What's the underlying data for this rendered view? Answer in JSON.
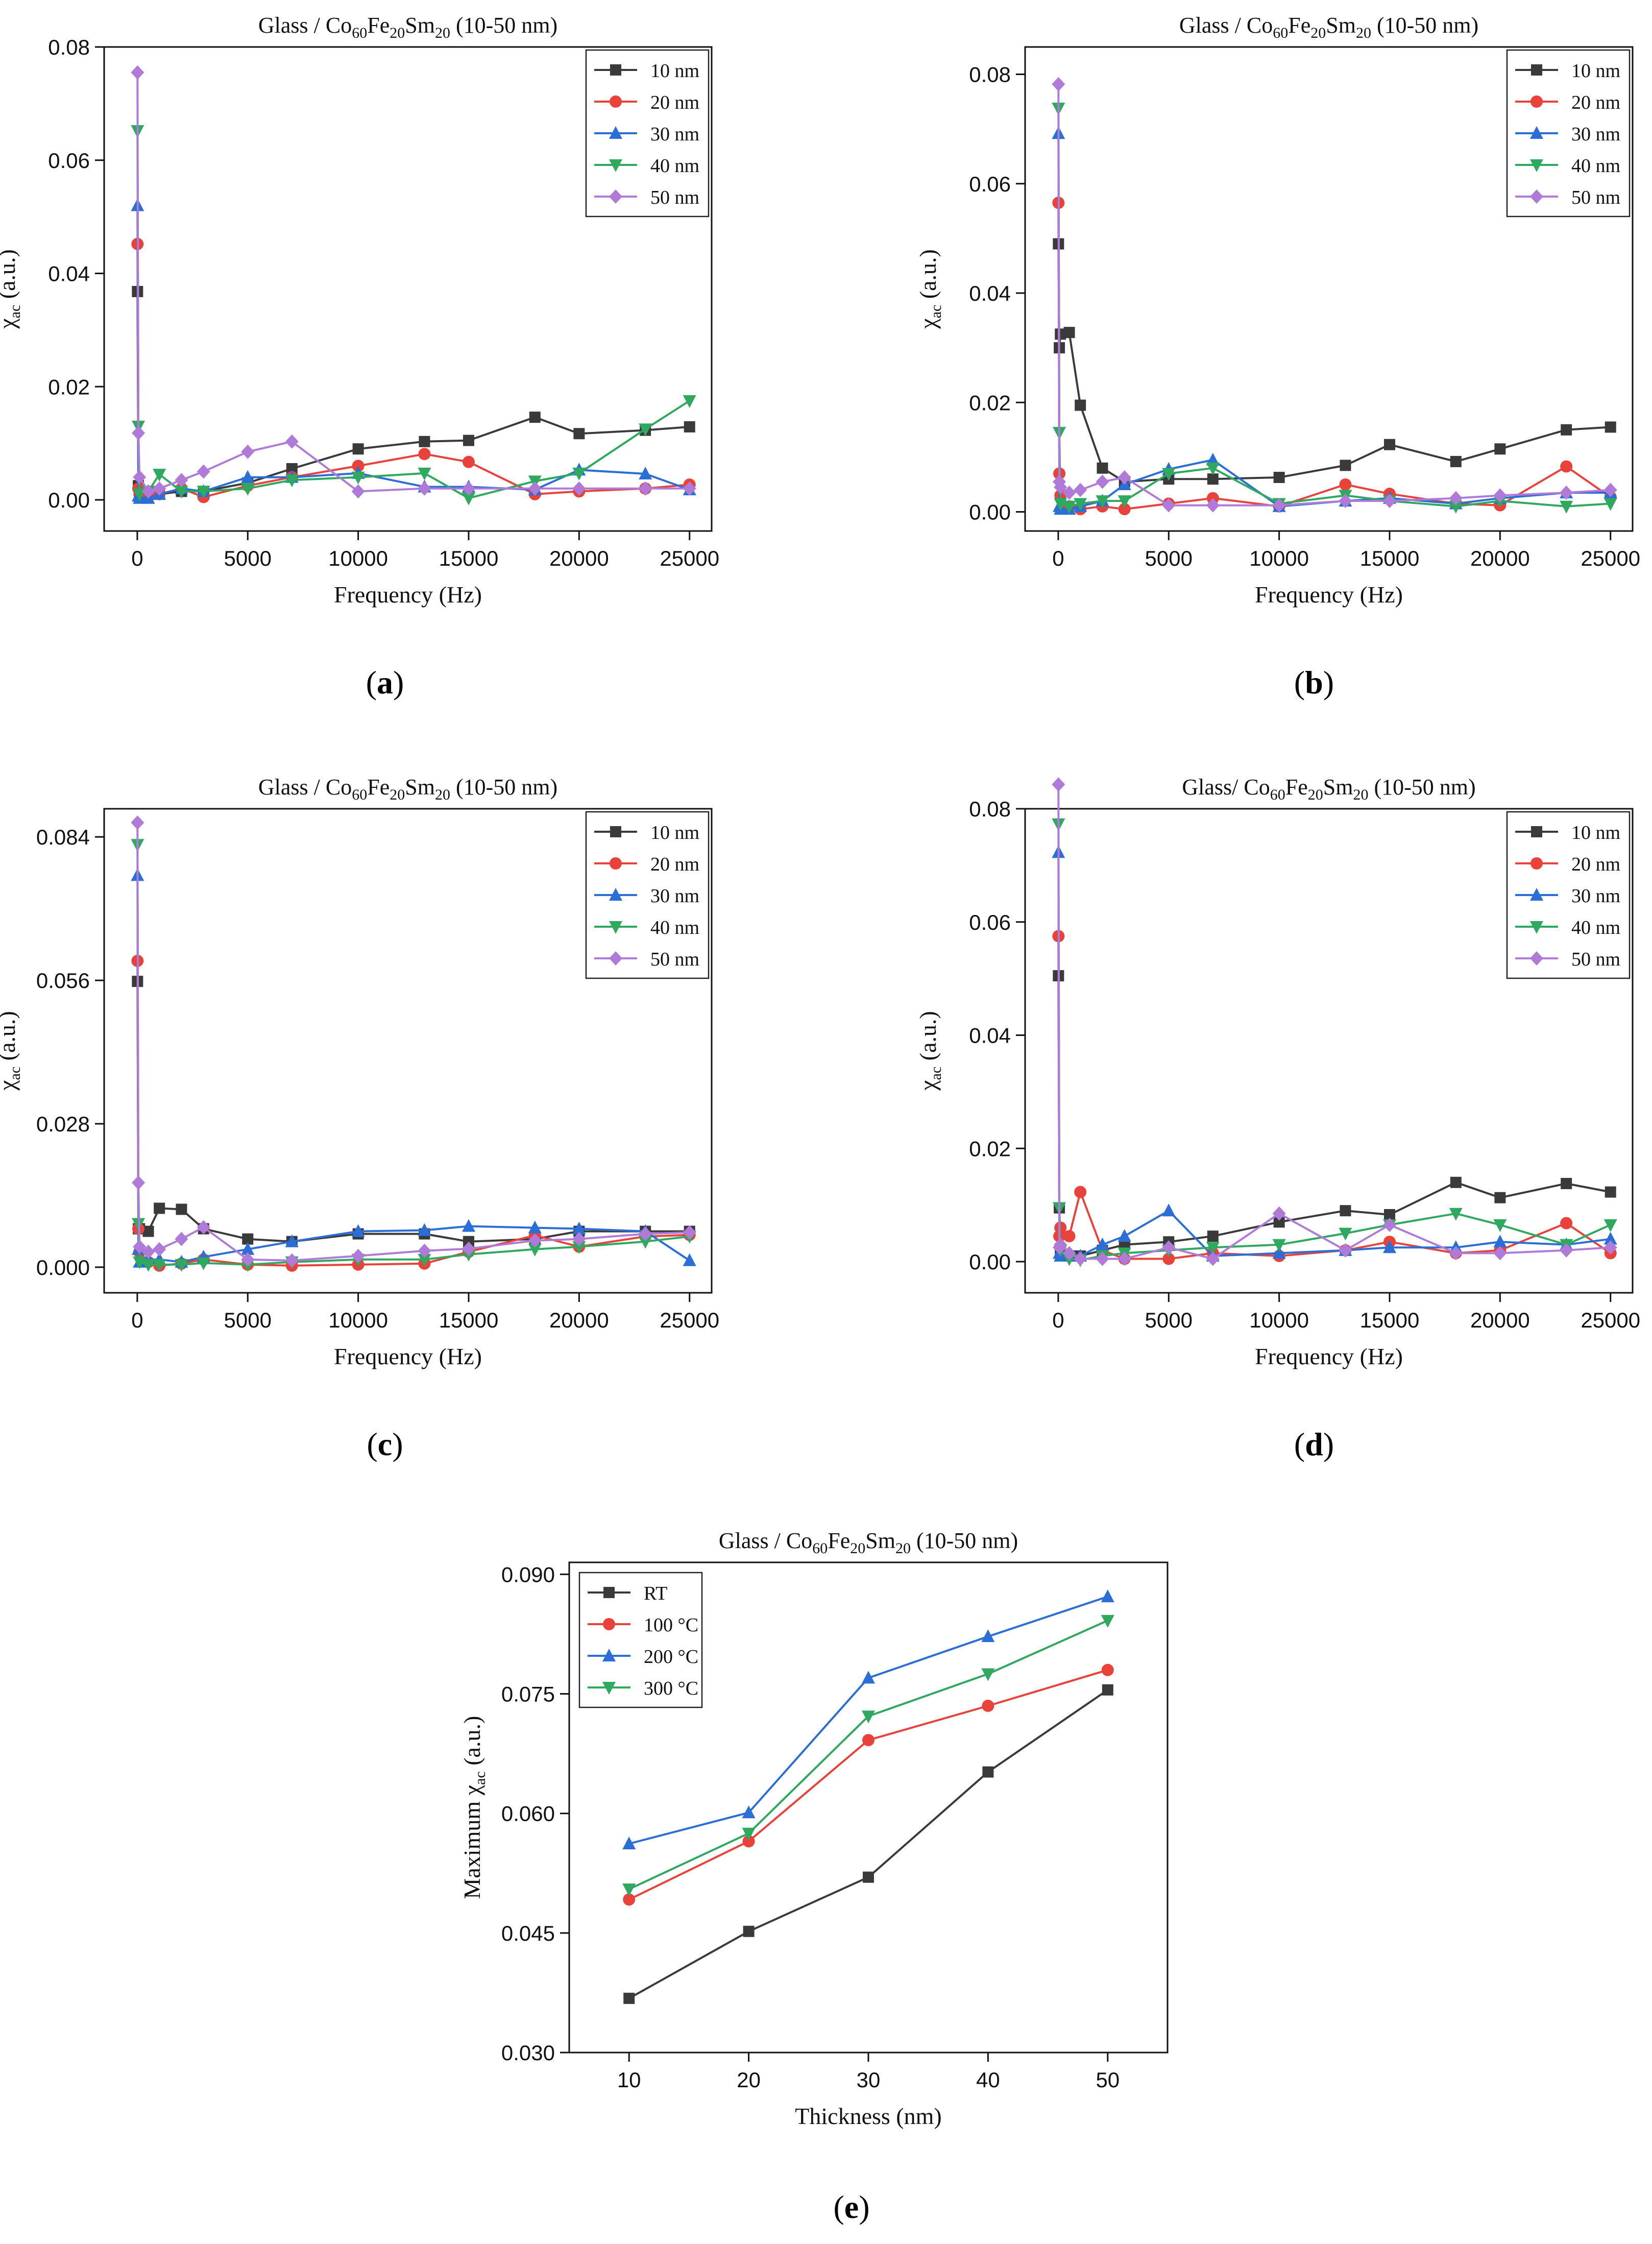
{
  "captions": {
    "a": {
      "open": "(",
      "letter": "a",
      "close": ")"
    },
    "b": {
      "open": "(",
      "letter": "b",
      "close": ")"
    },
    "c": {
      "open": "(",
      "letter": "c",
      "close": ")"
    },
    "d": {
      "open": "(",
      "letter": "d",
      "close": ")"
    },
    "e": {
      "open": "(",
      "letter": "e",
      "close": ")"
    }
  },
  "colors": {
    "10 nm": "#3a3a3a",
    "20 nm": "#e8423a",
    "30 nm": "#2b6fd6",
    "40 nm": "#2fa860",
    "50 nm": "#b07ad8",
    "RT": "#3a3a3a",
    "100 °C": "#e8423a",
    "200 °C": "#2b6fd6",
    "300 °C": "#2fa860"
  },
  "chart_data": [
    {
      "id": "a",
      "type": "line",
      "title": {
        "pre": "Glass / Co",
        "s1": "60",
        "m1": "Fe",
        "s2": "20",
        "m2": "Sm",
        "s3": "20",
        "post": " (10-50 nm)"
      },
      "xlabel": "Frequency (Hz)",
      "ylabel": {
        "main": "χ",
        "sub": "ac",
        "post": " (a.u.)"
      },
      "xlim": [
        -1500,
        26000
      ],
      "ylim": [
        -0.0055,
        0.08
      ],
      "xticks": [
        0,
        5000,
        10000,
        15000,
        20000,
        25000
      ],
      "yticks": [
        0.0,
        0.02,
        0.04,
        0.06,
        0.08
      ],
      "ytick_labels": [
        "0.00",
        "0.02",
        "0.04",
        "0.06",
        "0.08"
      ],
      "x": [
        10,
        50,
        100,
        500,
        1000,
        2000,
        3000,
        5000,
        7000,
        10000,
        13000,
        15000,
        18000,
        20000,
        23000,
        25000
      ],
      "series": [
        {
          "name": "10 nm",
          "marker": "square",
          "values": [
            0.0368,
            0.0025,
            0.0015,
            0.001,
            0.001,
            0.0015,
            0.0015,
            0.003,
            0.0055,
            0.009,
            0.0103,
            0.0105,
            0.0146,
            0.0117,
            0.0123,
            0.0129
          ]
        },
        {
          "name": "20 nm",
          "marker": "circle",
          "values": [
            0.0452,
            0.002,
            0.001,
            0.0005,
            0.001,
            0.002,
            0.0005,
            0.0025,
            0.004,
            0.006,
            0.0081,
            0.0067,
            0.001,
            0.0015,
            0.002,
            0.0027
          ]
        },
        {
          "name": "30 nm",
          "marker": "triangle-up",
          "values": [
            0.052,
            0.0007,
            0.0003,
            0.0003,
            0.001,
            0.002,
            0.0015,
            0.004,
            0.004,
            0.0047,
            0.0023,
            0.0023,
            0.0018,
            0.0053,
            0.0046,
            0.0018
          ]
        },
        {
          "name": "40 nm",
          "marker": "triangle-down",
          "values": [
            0.0652,
            0.013,
            0.001,
            0.0015,
            0.0045,
            0.0015,
            0.0015,
            0.002,
            0.0035,
            0.004,
            0.0047,
            0.0003,
            0.0033,
            0.0047,
            0.0125,
            0.0175
          ]
        },
        {
          "name": "50 nm",
          "marker": "diamond",
          "values": [
            0.0755,
            0.0118,
            0.004,
            0.0015,
            0.002,
            0.0035,
            0.005,
            0.0085,
            0.0103,
            0.0015,
            0.002,
            0.002,
            0.002,
            0.002,
            0.002,
            0.002
          ]
        }
      ]
    },
    {
      "id": "b",
      "type": "line",
      "title": {
        "pre": "Glass / Co",
        "s1": "60",
        "m1": "Fe",
        "s2": "20",
        "m2": "Sm",
        "s3": "20",
        "post": " (10-50 nm)"
      },
      "xlabel": "Frequency (Hz)",
      "ylabel": {
        "main": "χ",
        "sub": "ac",
        "post": " (a.u.)"
      },
      "xlim": [
        -1500,
        26000
      ],
      "ylim": [
        -0.0035,
        0.085
      ],
      "xticks": [
        0,
        5000,
        10000,
        15000,
        20000,
        25000
      ],
      "yticks": [
        0.0,
        0.02,
        0.04,
        0.06,
        0.08
      ],
      "ytick_labels": [
        "0.00",
        "0.02",
        "0.04",
        "0.06",
        "0.08"
      ],
      "x": [
        10,
        50,
        100,
        500,
        1000,
        2000,
        3000,
        5000,
        7000,
        10000,
        13000,
        15000,
        18000,
        20000,
        23000,
        25000
      ],
      "series": [
        {
          "name": "10 nm",
          "marker": "square",
          "values": [
            0.049,
            0.03,
            0.0325,
            0.0328,
            0.0195,
            0.008,
            0.0055,
            0.006,
            0.006,
            0.0063,
            0.0085,
            0.0123,
            0.0092,
            0.0115,
            0.015,
            0.0155
          ]
        },
        {
          "name": "20 nm",
          "marker": "circle",
          "values": [
            0.0565,
            0.007,
            0.003,
            0.001,
            0.0005,
            0.001,
            0.0005,
            0.0015,
            0.0025,
            0.001,
            0.005,
            0.0033,
            0.0015,
            0.0012,
            0.0083,
            0.0027
          ]
        },
        {
          "name": "30 nm",
          "marker": "triangle-up",
          "values": [
            0.0692,
            0.001,
            0.0005,
            0.0005,
            0.001,
            0.002,
            0.005,
            0.0078,
            0.0095,
            0.001,
            0.002,
            0.0025,
            0.0015,
            0.0025,
            0.0035,
            0.0035
          ]
        },
        {
          "name": "40 nm",
          "marker": "triangle-down",
          "values": [
            0.0738,
            0.0145,
            0.0015,
            0.001,
            0.0015,
            0.002,
            0.002,
            0.007,
            0.008,
            0.0015,
            0.003,
            0.002,
            0.001,
            0.002,
            0.001,
            0.0015
          ]
        },
        {
          "name": "50 nm",
          "marker": "diamond",
          "values": [
            0.0782,
            0.0055,
            0.0045,
            0.0035,
            0.004,
            0.0055,
            0.0063,
            0.0012,
            0.0012,
            0.0012,
            0.002,
            0.002,
            0.0025,
            0.003,
            0.0035,
            0.004
          ]
        }
      ]
    },
    {
      "id": "c",
      "type": "line",
      "title": {
        "pre": "Glass / Co",
        "s1": "60",
        "m1": "Fe",
        "s2": "20",
        "m2": "Sm",
        "s3": "20",
        "post": " (10-50 nm)"
      },
      "xlabel": "Frequency (Hz)",
      "ylabel": {
        "main": "χ",
        "sub": "ac",
        "post": " (a.u.)"
      },
      "xlim": [
        -1500,
        26000
      ],
      "ylim": [
        -0.005,
        0.0895
      ],
      "xticks": [
        0,
        5000,
        10000,
        15000,
        20000,
        25000
      ],
      "yticks": [
        0.0,
        0.028,
        0.056,
        0.084
      ],
      "ytick_labels": [
        "0.000",
        "0.028",
        "0.056",
        "0.084"
      ],
      "x": [
        10,
        50,
        100,
        500,
        1000,
        2000,
        3000,
        5000,
        7000,
        10000,
        13000,
        15000,
        18000,
        20000,
        23000,
        25000
      ],
      "series": [
        {
          "name": "10 nm",
          "marker": "square",
          "values": [
            0.0558,
            0.0075,
            0.0075,
            0.007,
            0.0115,
            0.0113,
            0.0075,
            0.0055,
            0.005,
            0.0065,
            0.0065,
            0.005,
            0.0055,
            0.007,
            0.007,
            0.007
          ]
        },
        {
          "name": "20 nm",
          "marker": "circle",
          "values": [
            0.0598,
            0.0075,
            0.003,
            0.001,
            0.0003,
            0.0007,
            0.0015,
            0.0005,
            0.0003,
            0.0005,
            0.0007,
            0.003,
            0.0062,
            0.004,
            0.006,
            0.0063
          ]
        },
        {
          "name": "30 nm",
          "marker": "triangle-up",
          "values": [
            0.0765,
            0.0035,
            0.001,
            0.0015,
            0.0015,
            0.001,
            0.002,
            0.0035,
            0.005,
            0.007,
            0.0072,
            0.008,
            0.0077,
            0.0075,
            0.007,
            0.0013
          ]
        },
        {
          "name": "40 nm",
          "marker": "triangle-down",
          "values": [
            0.0825,
            0.0085,
            0.001,
            0.0005,
            0.0005,
            0.0005,
            0.0008,
            0.0005,
            0.001,
            0.0015,
            0.0015,
            0.0025,
            0.0035,
            0.004,
            0.005,
            0.006
          ]
        },
        {
          "name": "50 nm",
          "marker": "diamond",
          "values": [
            0.0868,
            0.0165,
            0.004,
            0.003,
            0.0035,
            0.0055,
            0.0078,
            0.0015,
            0.0013,
            0.0022,
            0.0032,
            0.0036,
            0.0052,
            0.0055,
            0.0065,
            0.0068
          ]
        }
      ]
    },
    {
      "id": "d",
      "type": "line",
      "title": {
        "pre": "Glass/ Co",
        "s1": "60",
        "m1": "Fe",
        "s2": "20",
        "m2": "Sm",
        "s3": "20",
        "post": " (10-50 nm)"
      },
      "xlabel": "Frequency (Hz)",
      "ylabel": {
        "main": "χ",
        "sub": "ac",
        "post": " (a.u.)"
      },
      "xlim": [
        -1500,
        26000
      ],
      "ylim": [
        -0.0055,
        0.08
      ],
      "xticks": [
        0,
        5000,
        10000,
        15000,
        20000,
        25000
      ],
      "yticks": [
        0.0,
        0.02,
        0.04,
        0.06,
        0.08
      ],
      "ytick_labels": [
        "0.00",
        "0.02",
        "0.04",
        "0.06",
        "0.08"
      ],
      "x": [
        10,
        50,
        100,
        500,
        1000,
        2000,
        3000,
        5000,
        7000,
        10000,
        13000,
        15000,
        18000,
        20000,
        23000,
        25000
      ],
      "series": [
        {
          "name": "10 nm",
          "marker": "square",
          "values": [
            0.0505,
            0.0095,
            0.002,
            0.001,
            0.001,
            0.002,
            0.003,
            0.0035,
            0.0045,
            0.007,
            0.009,
            0.0083,
            0.014,
            0.0113,
            0.0138,
            0.0123
          ]
        },
        {
          "name": "20 nm",
          "marker": "circle",
          "values": [
            0.0575,
            0.0045,
            0.006,
            0.0045,
            0.0123,
            0.002,
            0.0005,
            0.0005,
            0.0015,
            0.001,
            0.002,
            0.0035,
            0.0015,
            0.002,
            0.0068,
            0.0015
          ]
        },
        {
          "name": "30 nm",
          "marker": "triangle-up",
          "values": [
            0.0723,
            0.0015,
            0.001,
            0.001,
            0.001,
            0.003,
            0.0045,
            0.009,
            0.001,
            0.0015,
            0.002,
            0.0025,
            0.0025,
            0.0035,
            0.003,
            0.004
          ]
        },
        {
          "name": "40 nm",
          "marker": "triangle-down",
          "values": [
            0.0773,
            0.0095,
            0.002,
            0.0005,
            0.0003,
            0.001,
            0.0015,
            0.002,
            0.0025,
            0.003,
            0.005,
            0.0065,
            0.0085,
            0.0065,
            0.003,
            0.0065
          ]
        },
        {
          "name": "50 nm",
          "marker": "diamond",
          "values": [
            0.0843,
            0.0025,
            0.003,
            0.0015,
            0.0005,
            0.0005,
            0.0005,
            0.0025,
            0.0005,
            0.0085,
            0.002,
            0.0065,
            0.0015,
            0.0015,
            0.002,
            0.0025
          ]
        }
      ]
    },
    {
      "id": "e",
      "type": "line",
      "title": {
        "pre": "Glass / Co",
        "s1": "60",
        "m1": "Fe",
        "s2": "20",
        "m2": "Sm",
        "s3": "20",
        "post": " (10-50 nm)"
      },
      "xlabel": "Thickness (nm)",
      "ylabel": {
        "main": "Maximum χ",
        "sub": "ac",
        "post": " (a.u.)"
      },
      "xlim": [
        5,
        55
      ],
      "ylim": [
        0.03,
        0.0915
      ],
      "xticks": [
        10,
        20,
        30,
        40,
        50
      ],
      "yticks": [
        0.03,
        0.045,
        0.06,
        0.075,
        0.09
      ],
      "ytick_labels": [
        "0.030",
        "0.045",
        "0.060",
        "0.075",
        "0.090"
      ],
      "x": [
        10,
        20,
        30,
        40,
        50
      ],
      "legend_pos": "top-left",
      "series": [
        {
          "name": "RT",
          "marker": "square",
          "values": [
            0.0368,
            0.0452,
            0.052,
            0.0652,
            0.0755
          ]
        },
        {
          "name": "100 °C",
          "marker": "circle",
          "values": [
            0.0492,
            0.0565,
            0.0692,
            0.0735,
            0.078
          ]
        },
        {
          "name": "200 °C",
          "marker": "triangle-up",
          "values": [
            0.0562,
            0.0601,
            0.077,
            0.0822,
            0.0872
          ]
        },
        {
          "name": "300 °C",
          "marker": "triangle-down",
          "values": [
            0.0505,
            0.0575,
            0.0722,
            0.0775,
            0.0842
          ]
        }
      ]
    }
  ]
}
